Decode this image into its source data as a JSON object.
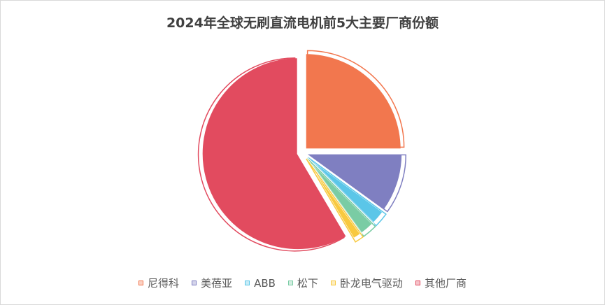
{
  "chart_data": {
    "type": "pie",
    "title": "2024年全球无刷直流电机前5大主要厂商份额",
    "categories": [
      "尼得科",
      "美蓓亚",
      "ABB",
      "松下",
      "卧龙电气驱动",
      "其他厂商"
    ],
    "values": [
      25.0,
      10.0,
      2.5,
      2.5,
      1.5,
      58.5
    ],
    "colors": [
      "#F2774E",
      "#7F7FC1",
      "#5BC6E8",
      "#7ACCA4",
      "#F8C93F",
      "#E24B5F"
    ],
    "exploded": true,
    "legend_position": "bottom"
  }
}
